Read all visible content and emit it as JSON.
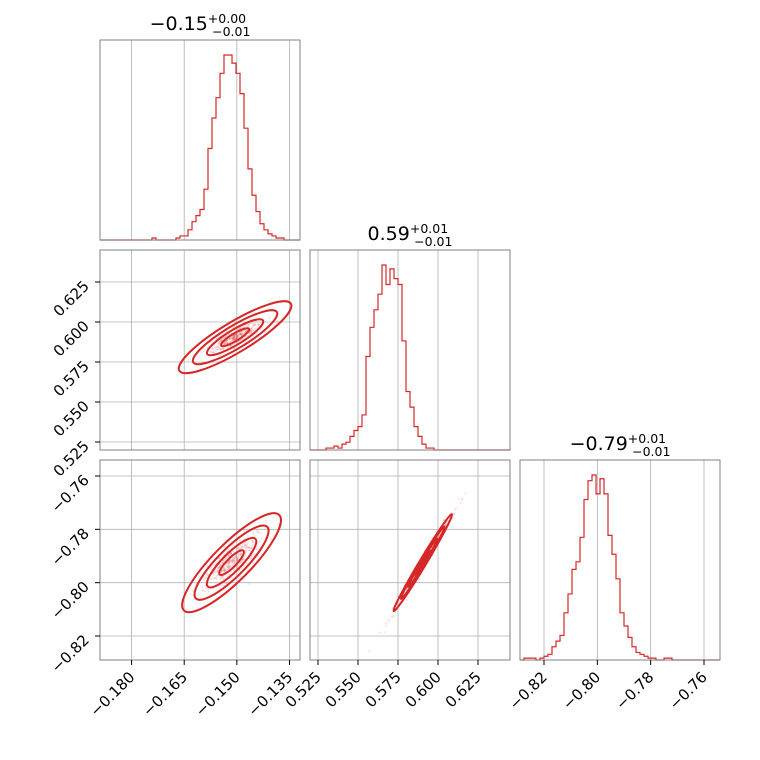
{
  "chart_data": {
    "type": "corner",
    "color": "#d62728",
    "frame_color": "#808080",
    "grid_color": "#b0b0b0",
    "grid": true,
    "parameters": [
      {
        "median": -0.15,
        "title": {
          "value": "−0.15",
          "plus": "+0.00",
          "minus": "−0.01"
        },
        "range": [
          -0.189,
          -0.132
        ],
        "ticks": [
          -0.18,
          -0.165,
          -0.15,
          -0.135
        ],
        "tick_labels": [
          "−0.180",
          "−0.165",
          "−0.150",
          "−0.135"
        ]
      },
      {
        "median": 0.59,
        "title": {
          "value": "0.59",
          "plus": "+0.01",
          "minus": "−0.01"
        },
        "range": [
          0.52,
          0.645
        ],
        "ticks": [
          0.525,
          0.55,
          0.575,
          0.6,
          0.625
        ],
        "tick_labels": [
          "0.525",
          "0.550",
          "0.575",
          "0.600",
          "0.625"
        ]
      },
      {
        "median": -0.79,
        "title": {
          "value": "−0.79",
          "plus": "+0.01",
          "minus": "−0.01"
        },
        "range": [
          -0.829,
          -0.754
        ],
        "ticks": [
          -0.82,
          -0.8,
          -0.78,
          -0.76
        ],
        "tick_labels": [
          "−0.82",
          "−0.80",
          "−0.78",
          "−0.76"
        ]
      }
    ],
    "histograms": [
      {
        "param": 0,
        "bin_start": -0.189,
        "bin_width": 0.00114,
        "counts": [
          0,
          0,
          0,
          0,
          0,
          0,
          0,
          0,
          0,
          0,
          0,
          0,
          0,
          1,
          0,
          0,
          0,
          0,
          0,
          1,
          2,
          2,
          5,
          9,
          12,
          15,
          25,
          45,
          60,
          70,
          82,
          91,
          91,
          87,
          82,
          72,
          55,
          35,
          22,
          14,
          8,
          5,
          3,
          2,
          1,
          1,
          0,
          0,
          0,
          0
        ]
      },
      {
        "param": 1,
        "bin_start": 0.52,
        "bin_width": 0.0025,
        "counts": [
          0,
          0,
          0,
          0,
          1,
          1,
          2,
          1,
          3,
          4,
          7,
          10,
          12,
          18,
          48,
          63,
          72,
          80,
          95,
          85,
          93,
          88,
          85,
          56,
          30,
          22,
          12,
          7,
          3,
          1,
          1,
          0,
          0,
          0,
          0,
          0,
          0,
          0,
          0,
          0,
          0,
          0,
          0,
          0,
          0,
          0,
          0,
          0,
          0,
          0
        ]
      },
      {
        "param": 2,
        "bin_start": -0.829,
        "bin_width": 0.0015,
        "counts": [
          0,
          1,
          1,
          1,
          0,
          1,
          2,
          3,
          7,
          10,
          13,
          25,
          35,
          48,
          52,
          65,
          85,
          95,
          98,
          88,
          96,
          88,
          66,
          56,
          43,
          25,
          18,
          12,
          7,
          4,
          3,
          2,
          1,
          1,
          0,
          0,
          1,
          1,
          0,
          0,
          0,
          0,
          0,
          0,
          0,
          0,
          0,
          0,
          0,
          0
        ]
      }
    ],
    "scatter_pairs": [
      {
        "x_param": 0,
        "y_param": 1,
        "x_center": -0.1505,
        "y_center": 0.5905,
        "slope": 1.32,
        "along_sd": 0.0056,
        "cross_sd": 0.0018
      },
      {
        "x_param": 0,
        "y_param": 2,
        "x_center": -0.1515,
        "y_center": -0.7925,
        "slope": 1.32,
        "along_sd": 0.0058,
        "cross_sd": 0.0022
      },
      {
        "x_param": 1,
        "y_param": 2,
        "x_center": 0.5905,
        "y_center": -0.7925,
        "slope": 1.0,
        "along_sd": 0.0125,
        "cross_sd": 0.0009
      }
    ]
  }
}
